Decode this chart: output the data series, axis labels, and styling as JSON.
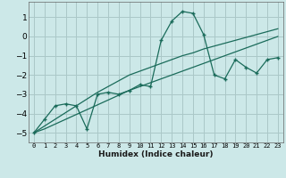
{
  "xlabel": "Humidex (Indice chaleur)",
  "ylabel": "",
  "background_color": "#cce8e8",
  "grid_color": "#aac8c8",
  "line_color": "#1a6b5a",
  "x_data": [
    0,
    1,
    2,
    3,
    4,
    5,
    6,
    7,
    8,
    9,
    10,
    11,
    12,
    13,
    14,
    15,
    16,
    17,
    18,
    19,
    20,
    21,
    22,
    23
  ],
  "y_main": [
    -5.0,
    -4.3,
    -3.6,
    -3.5,
    -3.6,
    -4.8,
    -3.0,
    -2.9,
    -3.0,
    -2.8,
    -2.5,
    -2.6,
    -0.2,
    0.8,
    1.3,
    1.2,
    0.1,
    -2.0,
    -2.2,
    -1.2,
    -1.6,
    -1.9,
    -1.2,
    -1.1
  ],
  "y_linear1": [
    -5.0,
    -4.65,
    -4.3,
    -3.95,
    -3.6,
    -3.25,
    -2.9,
    -2.6,
    -2.3,
    -2.0,
    -1.8,
    -1.6,
    -1.4,
    -1.2,
    -1.0,
    -0.85,
    -0.65,
    -0.5,
    -0.35,
    -0.2,
    -0.05,
    0.1,
    0.25,
    0.4
  ],
  "y_linear2": [
    -5.0,
    -4.8,
    -4.55,
    -4.3,
    -4.05,
    -3.8,
    -3.55,
    -3.3,
    -3.05,
    -2.8,
    -2.6,
    -2.4,
    -2.2,
    -2.0,
    -1.8,
    -1.6,
    -1.4,
    -1.2,
    -1.0,
    -0.8,
    -0.6,
    -0.4,
    -0.2,
    0.0
  ],
  "xlim": [
    -0.5,
    23.5
  ],
  "ylim": [
    -5.5,
    1.8
  ],
  "yticks": [
    -5,
    -4,
    -3,
    -2,
    -1,
    0,
    1
  ],
  "xtick_labels": [
    "0",
    "1",
    "2",
    "3",
    "4",
    "5",
    "6",
    "7",
    "8",
    "9",
    "10",
    "11",
    "12",
    "13",
    "14",
    "15",
    "16",
    "17",
    "18",
    "19",
    "20",
    "21",
    "22",
    "23"
  ]
}
